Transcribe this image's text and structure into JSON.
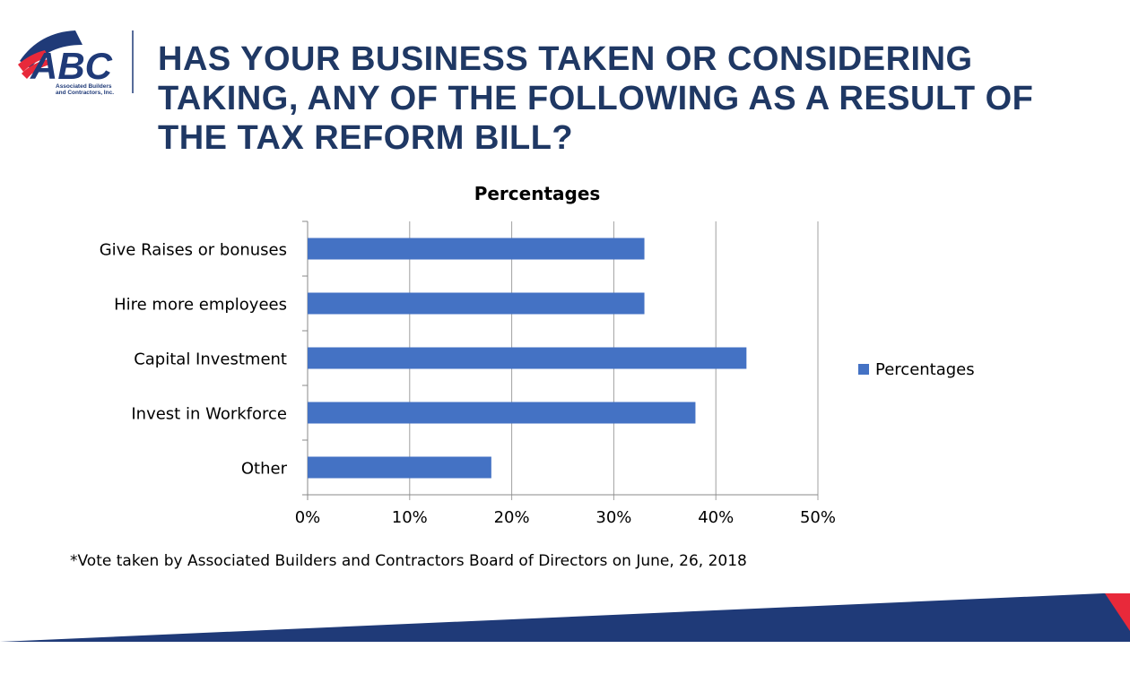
{
  "logo": {
    "text": "ABC",
    "subtitle": "Associated Builders and Contractors, Inc."
  },
  "title": "HAS YOUR BUSINESS TAKEN OR CONSIDERING TAKING, ANY OF THE FOLLOWING AS A RESULT OF THE TAX REFORM BILL?",
  "footnote": "*Vote taken by Associated Builders and Contractors Board of Directors on June, 26, 2018",
  "colors": {
    "bar": "#4472c4",
    "title": "#1f3864",
    "banner": "#1f3a78",
    "accent": "#e8293a"
  },
  "chart_data": {
    "type": "bar",
    "orientation": "horizontal",
    "title": "Percentages",
    "categories": [
      "Give Raises or bonuses",
      "Hire more employees",
      "Capital Investment",
      "Invest in Workforce",
      "Other"
    ],
    "series": [
      {
        "name": "Percentages",
        "values": [
          33,
          33,
          43,
          38,
          18
        ]
      }
    ],
    "xlim": [
      0,
      50
    ],
    "xticks": [
      "0%",
      "10%",
      "20%",
      "30%",
      "40%",
      "50%"
    ],
    "grid": true,
    "legend": "right"
  }
}
